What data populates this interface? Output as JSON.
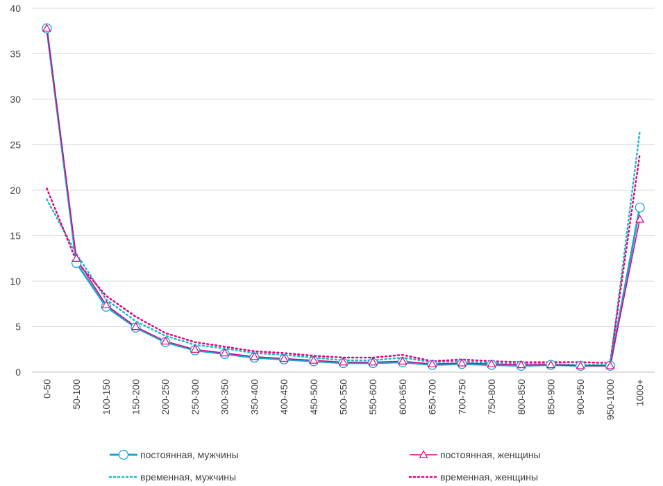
{
  "chart_data": {
    "type": "line",
    "categories": [
      "0-50",
      "50-100",
      "100-150",
      "150-200",
      "200-250",
      "250-300",
      "300-350",
      "350-400",
      "400-450",
      "450-500",
      "500-550",
      "550-600",
      "600-650",
      "650-700",
      "700-750",
      "750-800",
      "800-850",
      "850-900",
      "900-950",
      "950-1000",
      "1000+"
    ],
    "ylim": [
      0,
      40
    ],
    "yticks": [
      0,
      5,
      10,
      15,
      20,
      25,
      30,
      35,
      40
    ],
    "grid": true,
    "legend_position": "bottom",
    "series": [
      {
        "name": "постоянная, мужчины",
        "color": "#1aa6d4",
        "style": "solid",
        "marker": "circle",
        "values": [
          37.8,
          12.0,
          7.2,
          4.9,
          3.3,
          2.4,
          2.0,
          1.6,
          1.4,
          1.2,
          1.0,
          1.0,
          1.1,
          0.8,
          0.9,
          0.8,
          0.7,
          0.8,
          0.7,
          0.7,
          18.1
        ]
      },
      {
        "name": "постоянная, женщины",
        "color": "#e6007e",
        "style": "solid",
        "marker": "triangle",
        "values": [
          37.8,
          12.5,
          7.4,
          5.0,
          3.4,
          2.5,
          2.1,
          1.7,
          1.5,
          1.3,
          1.1,
          1.1,
          1.2,
          0.9,
          1.0,
          0.9,
          0.8,
          0.8,
          0.7,
          0.7,
          16.8
        ]
      },
      {
        "name": "временная, мужчины",
        "color": "#1bb9c4",
        "style": "dotted",
        "marker": "none",
        "values": [
          19.0,
          13.0,
          8.0,
          5.6,
          4.0,
          3.0,
          2.6,
          2.1,
          1.9,
          1.6,
          1.3,
          1.3,
          1.6,
          1.1,
          1.2,
          1.0,
          0.9,
          0.9,
          0.8,
          0.8,
          26.5
        ]
      },
      {
        "name": "временная, женщины",
        "color": "#e6007e",
        "style": "dotted",
        "marker": "none",
        "values": [
          20.2,
          12.2,
          8.4,
          6.1,
          4.3,
          3.3,
          2.8,
          2.3,
          2.1,
          1.8,
          1.6,
          1.6,
          1.9,
          1.2,
          1.4,
          1.2,
          1.1,
          1.1,
          1.1,
          1.0,
          24.0
        ]
      }
    ]
  }
}
